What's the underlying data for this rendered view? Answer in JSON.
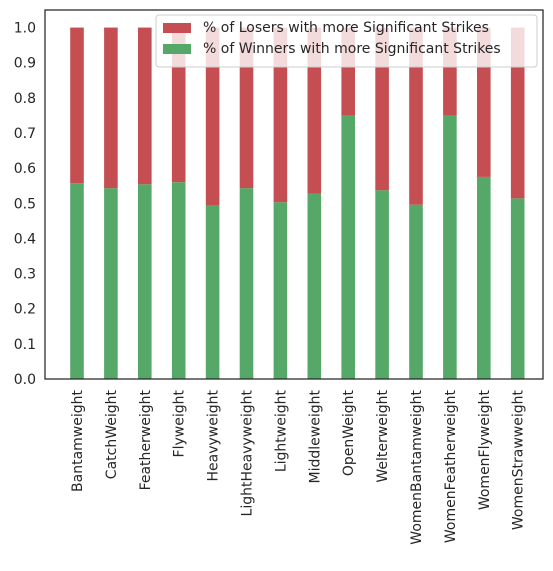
{
  "chart_data": {
    "type": "bar",
    "stacked": true,
    "categories": [
      "Bantamweight",
      "CatchWeight",
      "Featherweight",
      "Flyweight",
      "Heavyweight",
      "LightHeavyweight",
      "Lightweight",
      "Middleweight",
      "OpenWeight",
      "Welterweight",
      "WomenBantamweight",
      "WomenFeatherweight",
      "WomenFlyweight",
      "WomenStrawweight"
    ],
    "series": [
      {
        "name": "% of Winners with more Significant Strikes",
        "color": "#55a868",
        "values": [
          0.557,
          0.543,
          0.554,
          0.56,
          0.493,
          0.543,
          0.503,
          0.527,
          0.75,
          0.537,
          0.496,
          0.75,
          0.575,
          0.514
        ]
      },
      {
        "name": "% of Losers with more Significant Strikes",
        "color": "#c44e52",
        "values": [
          0.443,
          0.457,
          0.446,
          0.44,
          0.507,
          0.457,
          0.497,
          0.473,
          0.25,
          0.463,
          0.504,
          0.25,
          0.425,
          0.486
        ]
      }
    ],
    "legend_order": [
      "% of Losers with more Significant Strikes",
      "% of Winners with more Significant Strikes"
    ],
    "legend_position": "top-right",
    "yticks": [
      "0.0",
      "0.1",
      "0.2",
      "0.3",
      "0.4",
      "0.5",
      "0.6",
      "0.7",
      "0.8",
      "0.9",
      "1.0"
    ],
    "ylim": [
      0,
      1.05
    ],
    "grid": false,
    "title": "",
    "xlabel": "",
    "ylabel": ""
  }
}
